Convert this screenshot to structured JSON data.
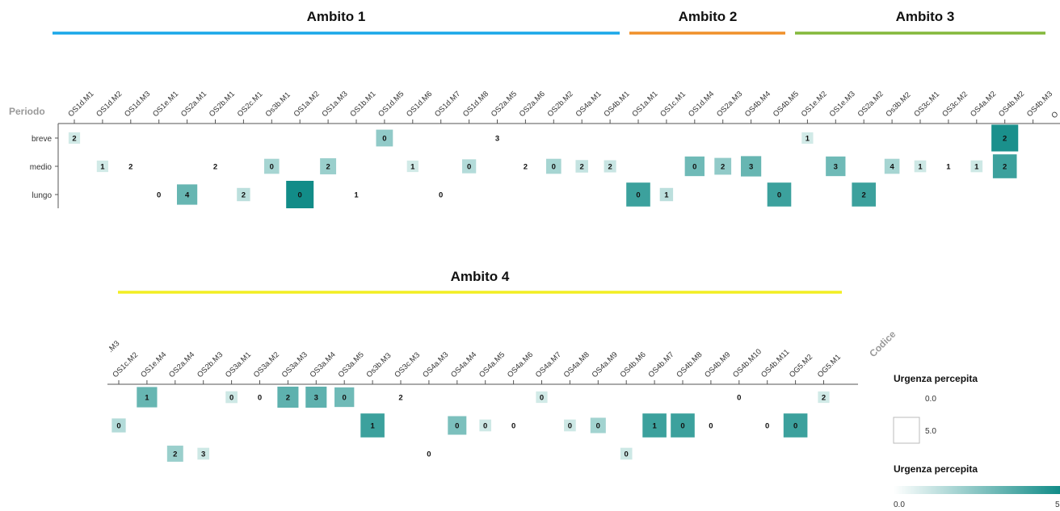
{
  "chart_data": {
    "type": "heatmap",
    "x_axis_title": "Codice",
    "y_axis_title": "Periodo",
    "rows": [
      "breve",
      "medio",
      "lungo"
    ],
    "color_min": "#e6f4f2",
    "color_max": "#128c88",
    "ambiti": [
      {
        "label": "Ambito 1",
        "color": "#1aa7e8"
      },
      {
        "label": "Ambito 2",
        "color": "#f0902a"
      },
      {
        "label": "Ambito 3",
        "color": "#84b83b"
      },
      {
        "label": "Ambito 4",
        "color": "#f2ee22"
      }
    ],
    "panels": [
      {
        "columns": [
          "OS1d.M1",
          "OS1d.M2",
          "OS1d.M3",
          "OS1e.M1",
          "OS2a.M1",
          "OS2b.M1",
          "OS2c.M1",
          "Os3b.M1",
          "OS1a.M2",
          "OS1a.M3",
          "OS1b.M1",
          "OS1d.M5",
          "OS1d.M6",
          "OS1d.M7",
          "OS1d.M8",
          "OS2a.M5",
          "OS2a.M6",
          "OS2b.M2",
          "OS4a.M1",
          "OS4b.M1",
          "OS1a.M1",
          "OS1c.M1",
          "OS1d.M4",
          "OS2a.M3",
          "OS4b.M4",
          "OS4b.M5",
          "OS1e.M2",
          "OS1e.M3",
          "OS2a.M2",
          "Os3b.M2",
          "OS3c.M1",
          "OS3c.M2",
          "OS4a.M2",
          "OS4b.M2",
          "OS4b.M3"
        ],
        "cells": [
          {
            "col": 0,
            "row": 0,
            "value": 2,
            "urgency": 0.5
          },
          {
            "col": 11,
            "row": 0,
            "value": 0,
            "urgency": 2.0
          },
          {
            "col": 15,
            "row": 0,
            "value": 3,
            "urgency": 0.0
          },
          {
            "col": 26,
            "row": 0,
            "value": 1,
            "urgency": 0.5
          },
          {
            "col": 33,
            "row": 0,
            "value": 2,
            "urgency": 4.8
          },
          {
            "col": 1,
            "row": 1,
            "value": 1,
            "urgency": 0.5
          },
          {
            "col": 2,
            "row": 1,
            "value": 2,
            "urgency": 0.0
          },
          {
            "col": 5,
            "row": 1,
            "value": 2,
            "urgency": 0.0
          },
          {
            "col": 7,
            "row": 1,
            "value": 0,
            "urgency": 1.5
          },
          {
            "col": 9,
            "row": 1,
            "value": 2,
            "urgency": 1.8
          },
          {
            "col": 12,
            "row": 1,
            "value": 1,
            "urgency": 0.5
          },
          {
            "col": 14,
            "row": 1,
            "value": 0,
            "urgency": 1.2
          },
          {
            "col": 16,
            "row": 1,
            "value": 2,
            "urgency": 0.0
          },
          {
            "col": 17,
            "row": 1,
            "value": 0,
            "urgency": 1.5
          },
          {
            "col": 18,
            "row": 1,
            "value": 2,
            "urgency": 0.8
          },
          {
            "col": 19,
            "row": 1,
            "value": 2,
            "urgency": 0.7
          },
          {
            "col": 22,
            "row": 1,
            "value": 0,
            "urgency": 2.8
          },
          {
            "col": 23,
            "row": 1,
            "value": 2,
            "urgency": 2.0
          },
          {
            "col": 24,
            "row": 1,
            "value": 3,
            "urgency": 3.0
          },
          {
            "col": 27,
            "row": 1,
            "value": 3,
            "urgency": 2.8
          },
          {
            "col": 29,
            "row": 1,
            "value": 4,
            "urgency": 1.5
          },
          {
            "col": 30,
            "row": 1,
            "value": 1,
            "urgency": 0.6
          },
          {
            "col": 31,
            "row": 1,
            "value": 1,
            "urgency": 0.0
          },
          {
            "col": 32,
            "row": 1,
            "value": 1,
            "urgency": 0.6
          },
          {
            "col": 33,
            "row": 1,
            "value": 2,
            "urgency": 4.0
          },
          {
            "col": 3,
            "row": 2,
            "value": 0,
            "urgency": 0.0
          },
          {
            "col": 4,
            "row": 2,
            "value": 4,
            "urgency": 3.0
          },
          {
            "col": 6,
            "row": 2,
            "value": 2,
            "urgency": 1.0
          },
          {
            "col": 8,
            "row": 2,
            "value": 0,
            "urgency": 5.0
          },
          {
            "col": 10,
            "row": 2,
            "value": 1,
            "urgency": 0.0
          },
          {
            "col": 13,
            "row": 2,
            "value": 0,
            "urgency": 0.0
          },
          {
            "col": 20,
            "row": 2,
            "value": 0,
            "urgency": 4.0
          },
          {
            "col": 21,
            "row": 2,
            "value": 1,
            "urgency": 1.0
          },
          {
            "col": 25,
            "row": 2,
            "value": 0,
            "urgency": 4.0
          },
          {
            "col": 28,
            "row": 2,
            "value": 2,
            "urgency": 4.0
          }
        ]
      },
      {
        "columns": [
          "OS1c.M2",
          "OS1e.M4",
          "OS2a.M4",
          "OS2b.M3",
          "OS3a.M1",
          "OS3a.M2",
          "OS3a.M3",
          "OS3a.M4",
          "OS3a.M5",
          "Os3b.M3",
          "OS3c.M3",
          "OS4a.M3",
          "OS4a.M4",
          "OS4a.M5",
          "OS4a.M6",
          "OS4a.M7",
          "OS4a.M8",
          "OS4a.M9",
          "OS4b.M6",
          "OS4b.M7",
          "OS4b.M8",
          "OS4b.M9",
          "OS4b.M10",
          "OS4b.M11",
          "OG5.M2",
          "OG5.M1"
        ],
        "cells": [
          {
            "col": 1,
            "row": 0,
            "value": 1,
            "urgency": 3.0
          },
          {
            "col": 4,
            "row": 0,
            "value": 0,
            "urgency": 0.6
          },
          {
            "col": 5,
            "row": 0,
            "value": 0,
            "urgency": 0.0
          },
          {
            "col": 6,
            "row": 0,
            "value": 2,
            "urgency": 3.2
          },
          {
            "col": 7,
            "row": 0,
            "value": 3,
            "urgency": 3.2
          },
          {
            "col": 8,
            "row": 0,
            "value": 0,
            "urgency": 2.8
          },
          {
            "col": 10,
            "row": 0,
            "value": 2,
            "urgency": 0.0
          },
          {
            "col": 15,
            "row": 0,
            "value": 0,
            "urgency": 0.5
          },
          {
            "col": 22,
            "row": 0,
            "value": 0,
            "urgency": 0.0
          },
          {
            "col": 25,
            "row": 0,
            "value": 2,
            "urgency": 0.5
          },
          {
            "col": 0,
            "row": 1,
            "value": 0,
            "urgency": 1.2
          },
          {
            "col": 9,
            "row": 1,
            "value": 1,
            "urgency": 4.0
          },
          {
            "col": 12,
            "row": 1,
            "value": 0,
            "urgency": 2.5
          },
          {
            "col": 13,
            "row": 1,
            "value": 0,
            "urgency": 0.6
          },
          {
            "col": 14,
            "row": 1,
            "value": 0,
            "urgency": 0.0
          },
          {
            "col": 16,
            "row": 1,
            "value": 0,
            "urgency": 0.6
          },
          {
            "col": 17,
            "row": 1,
            "value": 0,
            "urgency": 1.6
          },
          {
            "col": 19,
            "row": 1,
            "value": 1,
            "urgency": 4.0
          },
          {
            "col": 20,
            "row": 1,
            "value": 0,
            "urgency": 4.0
          },
          {
            "col": 21,
            "row": 1,
            "value": 0,
            "urgency": 0.0
          },
          {
            "col": 23,
            "row": 1,
            "value": 0,
            "urgency": 0.0
          },
          {
            "col": 24,
            "row": 1,
            "value": 0,
            "urgency": 4.0
          },
          {
            "col": 2,
            "row": 2,
            "value": 2,
            "urgency": 1.8
          },
          {
            "col": 3,
            "row": 2,
            "value": 3,
            "urgency": 0.6
          },
          {
            "col": 11,
            "row": 2,
            "value": 0,
            "urgency": 0.0
          },
          {
            "col": 18,
            "row": 2,
            "value": 0,
            "urgency": 0.6
          }
        ]
      }
    ],
    "legend": {
      "size_title": "Urgenza percepita",
      "size_min": "0.0",
      "size_max": "5.0",
      "color_title": "Urgenza percepita",
      "color_min": "0.0",
      "color_max_partial": "5"
    }
  }
}
